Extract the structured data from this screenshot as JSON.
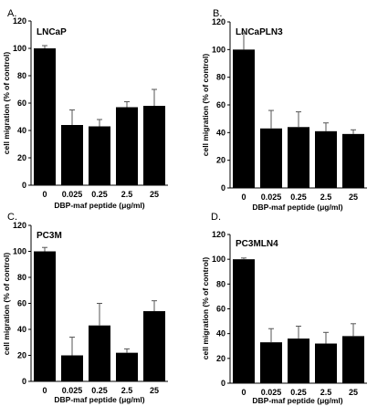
{
  "chart_data": [
    {
      "type": "bar",
      "panel": "A.",
      "title": "LNCaP",
      "xlabel": "DBP-maf peptide (μg/ml)",
      "ylabel": "cell migration (% of control)",
      "categories": [
        "0",
        "0.025",
        "0.25",
        "2.5",
        "25"
      ],
      "values": [
        100,
        44,
        43,
        57,
        58
      ],
      "errors": [
        2,
        11,
        5,
        4,
        12
      ],
      "ylim": [
        0,
        120
      ],
      "yticks": [
        "0",
        "20",
        "40",
        "60",
        "80",
        "100",
        "120"
      ],
      "grid": false,
      "legend": "none"
    },
    {
      "type": "bar",
      "panel": "B.",
      "title": "LNCaPLN3",
      "xlabel": "DBP-maf peptide (μg/ml)",
      "ylabel": "cell migration (% of control)",
      "categories": [
        "0",
        "0.025",
        "0.25",
        "2.5",
        "25"
      ],
      "values": [
        100,
        43,
        44,
        41,
        39
      ],
      "errors": [
        12,
        13,
        11,
        6,
        3
      ],
      "ylim": [
        0,
        120
      ],
      "yticks": [
        "0",
        "20",
        "40",
        "60",
        "80",
        "100",
        "120"
      ],
      "grid": false,
      "legend": "none"
    },
    {
      "type": "bar",
      "panel": "C.",
      "title": "PC3M",
      "xlabel": "DBP-maf peptide (μg/ml)",
      "ylabel": "cell migration (% of control)",
      "categories": [
        "0",
        "0.025",
        "0.25",
        "2.5",
        "25"
      ],
      "values": [
        100,
        20,
        43,
        22,
        54
      ],
      "errors": [
        3,
        14,
        17,
        3,
        8
      ],
      "ylim": [
        0,
        120
      ],
      "yticks": [
        "0",
        "20",
        "40",
        "60",
        "80",
        "100",
        "120"
      ],
      "grid": false,
      "legend": "none"
    },
    {
      "type": "bar",
      "panel": "D.",
      "title": "PC3MLN4",
      "xlabel": "DBP-maf peptide (μg/ml)",
      "ylabel": "cell migration (% of control)",
      "categories": [
        "0",
        "0.025",
        "0.25",
        "2.5",
        "25"
      ],
      "values": [
        100,
        33,
        36,
        32,
        38
      ],
      "errors": [
        1,
        11,
        10,
        9,
        10
      ],
      "ylim": [
        0,
        120
      ],
      "yticks": [
        "0",
        "20",
        "40",
        "60",
        "80",
        "100",
        "120"
      ],
      "grid": false,
      "legend": "none"
    }
  ],
  "colors": {
    "bar": "#000000",
    "axis": "#000000",
    "error_bar": "#555555"
  }
}
